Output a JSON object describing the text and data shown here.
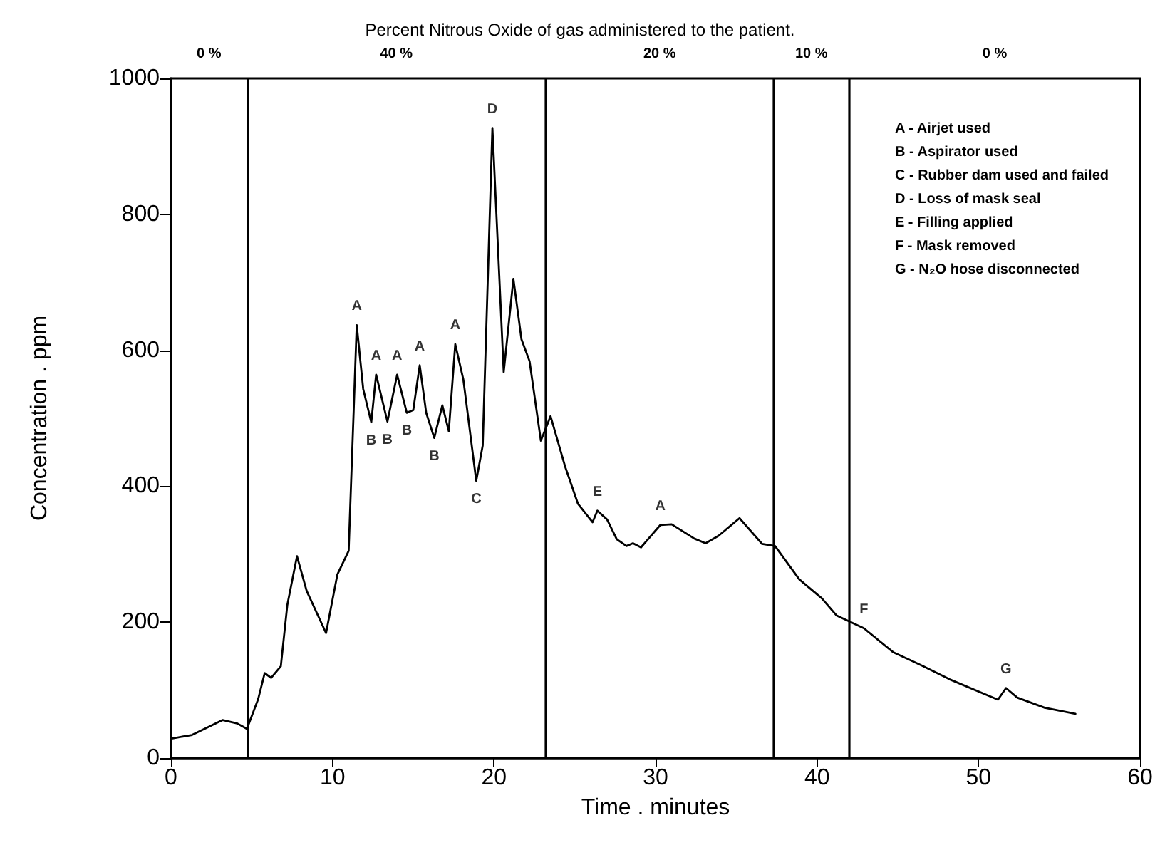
{
  "chart_data": {
    "type": "line",
    "title": "Percent Nitrous Oxide of gas administered to the patient.",
    "xlabel": "Time . minutes",
    "ylabel": "Concentration . ppm",
    "x": [
      0.1,
      1.3,
      3.2,
      4.1,
      4.7,
      5.4,
      5.8,
      6.2,
      6.8,
      7.2,
      7.8,
      8.4,
      9.6,
      10.3,
      11.0,
      11.5,
      11.9,
      12.4,
      12.7,
      13.4,
      14.0,
      14.6,
      15.0,
      15.4,
      15.8,
      16.3,
      16.8,
      17.2,
      17.6,
      18.1,
      18.9,
      19.3,
      19.9,
      20.6,
      21.2,
      21.7,
      22.2,
      22.9,
      23.5,
      24.4,
      25.2,
      26.1,
      26.4,
      27.0,
      27.6,
      28.2,
      28.6,
      29.1,
      30.3,
      31.0,
      32.4,
      33.1,
      33.9,
      35.2,
      36.6,
      37.4,
      38.9,
      40.3,
      41.2,
      42.9,
      44.7,
      46.5,
      48.2,
      51.2,
      51.7,
      52.4,
      54.1,
      56.0
    ],
    "series": [
      {
        "color": "#000000",
        "values": [
          29,
          34,
          56,
          51,
          43,
          87,
          125,
          118,
          135,
          225,
          297,
          246,
          184,
          270,
          305,
          637,
          543,
          494,
          564,
          495,
          564,
          508,
          512,
          578,
          508,
          471,
          519,
          481,
          609,
          557,
          408,
          460,
          927,
          568,
          705,
          616,
          584,
          467,
          503,
          429,
          374,
          347,
          364,
          351,
          322,
          312,
          316,
          310,
          343,
          344,
          323,
          316,
          327,
          353,
          315,
          312,
          263,
          235,
          210,
          191,
          156,
          136,
          116,
          86,
          103,
          89,
          74,
          65
        ]
      }
    ],
    "xlim": [
      0,
      60
    ],
    "xticks": [
      0,
      10,
      20,
      30,
      40,
      50,
      60
    ],
    "ylim": [
      0,
      1000
    ],
    "yticks": [
      0,
      200,
      400,
      600,
      800,
      1000
    ],
    "ref_lines": [
      {
        "axis": "x",
        "value": 4.7,
        "color": "#000000"
      },
      {
        "axis": "x",
        "value": 23.2,
        "color": "#000000"
      },
      {
        "axis": "x",
        "value": 37.3,
        "color": "#000000"
      },
      {
        "axis": "x",
        "value": 42.0,
        "color": "#000000"
      }
    ],
    "annotations": [
      "0 %",
      "40 %",
      "20 %",
      "10 %",
      "0 %",
      {
        "text": "A",
        "x": 11.5,
        "y": 637
      },
      {
        "text": "A",
        "x": 12.7,
        "y": 564
      },
      {
        "text": "A",
        "x": 14.0,
        "y": 564
      },
      {
        "text": "A",
        "x": 15.4,
        "y": 578
      },
      {
        "text": "A",
        "x": 17.6,
        "y": 609
      },
      {
        "text": "A",
        "x": 30.3,
        "y": 343
      },
      {
        "text": "B",
        "x": 12.4,
        "y": 494
      },
      {
        "text": "B",
        "x": 13.4,
        "y": 495
      },
      {
        "text": "B",
        "x": 14.6,
        "y": 508
      },
      {
        "text": "B",
        "x": 16.3,
        "y": 471
      },
      {
        "text": "C",
        "x": 18.9,
        "y": 408
      },
      {
        "text": "D",
        "x": 19.9,
        "y": 927
      },
      {
        "text": "E",
        "x": 26.4,
        "y": 364
      },
      {
        "text": "F",
        "x": 42.9,
        "y": 191
      },
      {
        "text": "G",
        "x": 51.7,
        "y": 103
      },
      "A - Airjet used",
      "B - Aspirator used",
      "C - Rubber dam used and failed",
      "D - Loss of mask seal",
      "E - Filling applied",
      "F - Mask removed",
      "G - N₂O hose disconnected"
    ],
    "grid": false,
    "marker": "none",
    "line_style": "solid"
  }
}
